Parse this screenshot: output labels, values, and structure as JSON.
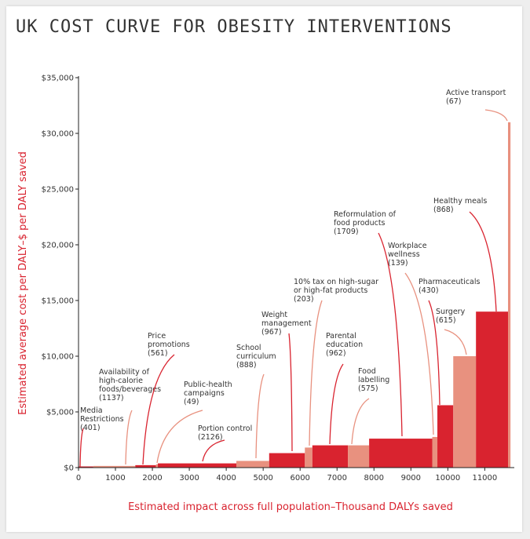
{
  "chart_data": {
    "type": "bar",
    "title": "UK COST CURVE FOR OBESITY INTERVENTIONS",
    "xlabel": "Estimated impact across full population–Thousand DALYs saved",
    "ylabel": "Estimated average cost per DALY–$ per DALY saved",
    "xlim": [
      0,
      11800
    ],
    "ylim": [
      0,
      35000
    ],
    "x_ticks": [
      "0",
      "1000",
      "2000",
      "3000",
      "4000",
      "5000",
      "6000",
      "7000",
      "8000",
      "9000",
      "10000",
      "11000"
    ],
    "y_ticks": [
      "$0",
      "$5,000",
      "$10,000",
      "$15,000",
      "$20,000",
      "$25,000",
      "$30,000",
      "$35,000"
    ],
    "grid": false,
    "colors": {
      "dark": "#d9232f",
      "light": "#e8917f"
    },
    "bars": [
      {
        "label_lines": [
          "Media",
          "Restrictions",
          "(401)"
        ],
        "width": 401,
        "cost": 60,
        "shade": "dark"
      },
      {
        "label_lines": [
          "Availability of",
          "high-calorie",
          "foods/beverages",
          "(1137)"
        ],
        "width": 1137,
        "cost": 150,
        "shade": "light"
      },
      {
        "label_lines": [
          "Price",
          "promotions",
          "(561)"
        ],
        "width": 561,
        "cost": 220,
        "shade": "dark"
      },
      {
        "label_lines": [
          "Public-health",
          "campaigns",
          "(49)"
        ],
        "width": 49,
        "cost": 300,
        "shade": "light"
      },
      {
        "label_lines": [
          "Portion control",
          "(2126)"
        ],
        "width": 2126,
        "cost": 380,
        "shade": "dark"
      },
      {
        "label_lines": [
          "School",
          "curriculum",
          "(888)"
        ],
        "width": 888,
        "cost": 600,
        "shade": "light"
      },
      {
        "label_lines": [
          "Weight",
          "management",
          "(967)"
        ],
        "width": 967,
        "cost": 1300,
        "shade": "dark"
      },
      {
        "label_lines": [
          "10% tax on high-sugar",
          "or high-fat products",
          "(203)"
        ],
        "width": 203,
        "cost": 1800,
        "shade": "light"
      },
      {
        "label_lines": [
          "Parental",
          "education",
          "(962)"
        ],
        "width": 962,
        "cost": 2000,
        "shade": "dark"
      },
      {
        "label_lines": [
          "Food",
          "labelling",
          "(575)"
        ],
        "width": 575,
        "cost": 2000,
        "shade": "light"
      },
      {
        "label_lines": [
          "Reformulation of",
          "food products",
          "(1709)"
        ],
        "width": 1709,
        "cost": 2600,
        "shade": "dark"
      },
      {
        "label_lines": [
          "Workplace",
          "wellness",
          "(139)"
        ],
        "width": 139,
        "cost": 2750,
        "shade": "light"
      },
      {
        "label_lines": [
          "Pharmaceuticals",
          "(430)"
        ],
        "width": 430,
        "cost": 5600,
        "shade": "dark"
      },
      {
        "label_lines": [
          "Surgery",
          "(615)"
        ],
        "width": 615,
        "cost": 10000,
        "shade": "light"
      },
      {
        "label_lines": [
          "Healthy meals",
          "(868)"
        ],
        "width": 868,
        "cost": 14000,
        "shade": "dark"
      },
      {
        "label_lines": [
          "Active transport",
          "(67)"
        ],
        "width": 67,
        "cost": 31000,
        "shade": "light"
      }
    ]
  }
}
